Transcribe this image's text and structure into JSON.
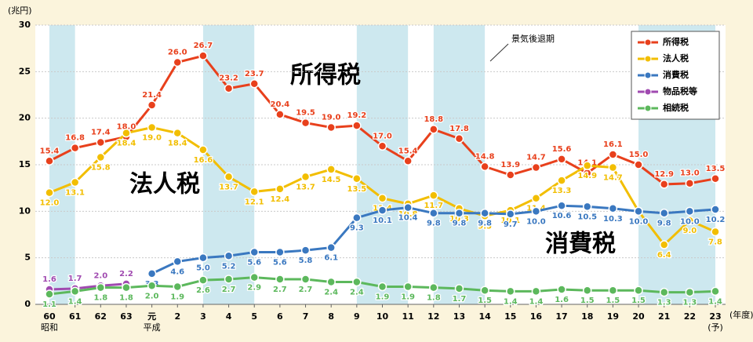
{
  "chart_data": {
    "type": "line",
    "y_unit": "(兆円)",
    "x_unit": "(年度)",
    "categories": [
      "60",
      "61",
      "62",
      "63",
      "元",
      "2",
      "3",
      "4",
      "5",
      "6",
      "7",
      "8",
      "9",
      "10",
      "11",
      "12",
      "13",
      "14",
      "15",
      "16",
      "17",
      "18",
      "19",
      "20",
      "21",
      "22",
      "23"
    ],
    "category_sublabels": [
      "昭和",
      null,
      null,
      null,
      "平成",
      null,
      null,
      null,
      null,
      null,
      null,
      null,
      null,
      null,
      null,
      null,
      null,
      null,
      null,
      null,
      null,
      null,
      null,
      null,
      null,
      null,
      "(予)"
    ],
    "ylim": [
      0,
      30
    ],
    "yticks": [
      0,
      5,
      10,
      15,
      20,
      25,
      30
    ],
    "grid": true,
    "recession_label": "景気後退期",
    "recession_periods": [
      [
        "60",
        "61"
      ],
      [
        "3",
        "5"
      ],
      [
        "9",
        "11"
      ],
      [
        "12",
        "14"
      ],
      [
        "20",
        "23"
      ]
    ],
    "annotations": [
      "所得税",
      "法人税",
      "消費税"
    ],
    "legend": "top-right",
    "series": [
      {
        "name": "所得税",
        "color": "#e8401c",
        "values": [
          15.4,
          16.8,
          17.4,
          18.0,
          21.4,
          26.0,
          26.7,
          23.2,
          23.7,
          20.4,
          19.5,
          19.0,
          19.2,
          17.0,
          15.4,
          18.8,
          17.8,
          14.8,
          13.9,
          14.7,
          15.6,
          14.1,
          16.1,
          15.0,
          12.9,
          13.0,
          13.5
        ],
        "value_labels": [
          "15.4",
          "16.8",
          "17.4",
          "18.0",
          "21.4",
          "26.0",
          "26.7",
          "23.2",
          "23.7",
          "20.4",
          "19.5",
          "19.0",
          "19.2",
          "17.0",
          "15.4",
          "18.8",
          "17.8",
          "14.8",
          "13.9",
          "14.7",
          "15.6",
          "14.1",
          "16.1",
          "15.0",
          "12.9",
          "13.0",
          "13.5"
        ]
      },
      {
        "name": "法人税",
        "color": "#f2be00",
        "values": [
          12.0,
          13.1,
          15.8,
          18.4,
          19.0,
          18.4,
          16.6,
          13.7,
          12.1,
          12.4,
          13.7,
          14.5,
          13.5,
          11.4,
          10.8,
          11.7,
          10.3,
          9.5,
          10.1,
          11.4,
          13.3,
          14.9,
          14.7,
          10.0,
          6.4,
          9.0,
          7.8
        ],
        "value_labels": [
          "12.0",
          "13.1",
          "15.8",
          "18.4",
          "19.0",
          "18.4",
          "16.6",
          "13.7",
          "12.1",
          "12.4",
          "13.7",
          "14.5",
          "13.5",
          "11.4",
          "10.8",
          "11.7",
          "10.3",
          "9.5",
          "10.1",
          "11.4",
          "13.3",
          "14.9",
          "14.7",
          "10.0",
          "6.4",
          "9.0",
          "7.8"
        ]
      },
      {
        "name": "消費税",
        "color": "#3a78c0",
        "values": [
          null,
          null,
          null,
          null,
          3.3,
          4.6,
          5.0,
          5.2,
          5.6,
          5.6,
          5.8,
          6.1,
          9.3,
          10.1,
          10.4,
          9.8,
          9.8,
          9.8,
          9.7,
          10.0,
          10.6,
          10.5,
          10.3,
          10.0,
          9.8,
          10.0,
          10.2
        ],
        "value_labels": [
          null,
          null,
          null,
          null,
          "3.3",
          "4.6",
          "5.0",
          "5.2",
          "5.6",
          "5.6",
          "5.8",
          "6.1",
          "9.3",
          "10.1",
          "10.4",
          "9.8",
          "9.8",
          "9.8",
          "9.7",
          "10.0",
          "10.6",
          "10.5",
          "10.3",
          "10.0",
          "9.8",
          "10.0",
          "10.2"
        ]
      },
      {
        "name": "物品税等",
        "color": "#a04ab0",
        "values": [
          1.6,
          1.7,
          2.0,
          2.2,
          null,
          null,
          null,
          null,
          null,
          null,
          null,
          null,
          null,
          null,
          null,
          null,
          null,
          null,
          null,
          null,
          null,
          null,
          null,
          null,
          null,
          null,
          null
        ],
        "value_labels": [
          "1.6",
          "1.7",
          "2.0",
          "2.2",
          null,
          null,
          null,
          null,
          null,
          null,
          null,
          null,
          null,
          null,
          null,
          null,
          null,
          null,
          null,
          null,
          null,
          null,
          null,
          null,
          null,
          null,
          null
        ]
      },
      {
        "name": "相続税",
        "color": "#5cb85c",
        "values": [
          1.1,
          1.4,
          1.8,
          1.8,
          2.0,
          1.9,
          2.6,
          2.7,
          2.9,
          2.7,
          2.7,
          2.4,
          2.4,
          1.9,
          1.9,
          1.8,
          1.7,
          1.5,
          1.4,
          1.4,
          1.6,
          1.5,
          1.5,
          1.5,
          1.3,
          1.3,
          1.4
        ],
        "value_labels": [
          "1.1",
          "1.4",
          "1.8",
          "1.8",
          "2.0",
          "1.9",
          "2.6",
          "2.7",
          "2.9",
          "2.7",
          "2.7",
          "2.4",
          "2.4",
          "1.9",
          "1.9",
          "1.8",
          "1.7",
          "1.5",
          "1.4",
          "1.4",
          "1.6",
          "1.5",
          "1.5",
          "1.5",
          "1.3",
          "1.3",
          "1.4"
        ]
      }
    ]
  }
}
